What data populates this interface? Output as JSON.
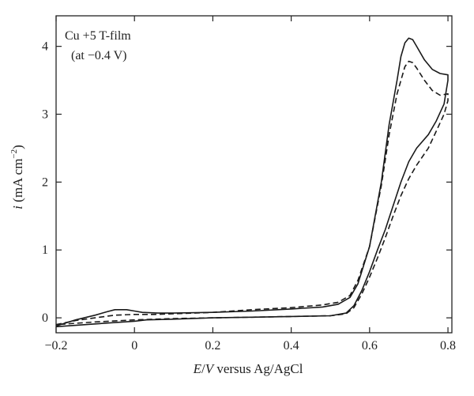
{
  "chart_data": {
    "type": "line",
    "annotation_lines": [
      "Cu +5 T-film",
      "(at −0.4 V)"
    ],
    "xlabel_parts": {
      "E": "E",
      "slash": "/",
      "V": "V",
      "rest": " versus Ag/AgCl"
    },
    "ylabel_parts": {
      "i": "i",
      "rest": " (mA cm",
      "exp": "−2",
      "close": ")"
    },
    "xlim": [
      -0.2,
      0.81
    ],
    "ylim": [
      -0.22,
      4.45
    ],
    "xticks": [
      -0.2,
      0,
      0.2,
      0.4,
      0.6,
      0.8
    ],
    "xtick_labels": [
      "−0.2",
      "0",
      "0.2",
      "0.4",
      "0.6",
      "0.8"
    ],
    "yticks": [
      0,
      1,
      2,
      3,
      4
    ],
    "ytick_labels": [
      "0",
      "1",
      "2",
      "3",
      "4"
    ],
    "series": [
      {
        "style": "solid",
        "points": [
          [
            -0.2,
            -0.12
          ],
          [
            -0.15,
            -0.03
          ],
          [
            -0.1,
            0.04
          ],
          [
            -0.07,
            0.09
          ],
          [
            -0.05,
            0.12
          ],
          [
            -0.02,
            0.12
          ],
          [
            0.0,
            0.1
          ],
          [
            0.02,
            0.08
          ],
          [
            0.06,
            0.07
          ],
          [
            0.1,
            0.07
          ],
          [
            0.2,
            0.08
          ],
          [
            0.3,
            0.1
          ],
          [
            0.4,
            0.13
          ],
          [
            0.48,
            0.16
          ],
          [
            0.52,
            0.2
          ],
          [
            0.55,
            0.3
          ],
          [
            0.57,
            0.5
          ],
          [
            0.6,
            1.05
          ],
          [
            0.63,
            2.0
          ],
          [
            0.65,
            2.85
          ],
          [
            0.67,
            3.5
          ],
          [
            0.68,
            3.85
          ],
          [
            0.69,
            4.05
          ],
          [
            0.7,
            4.12
          ],
          [
            0.71,
            4.1
          ],
          [
            0.72,
            4.0
          ],
          [
            0.74,
            3.8
          ],
          [
            0.76,
            3.66
          ],
          [
            0.78,
            3.6
          ],
          [
            0.8,
            3.58
          ],
          [
            0.8,
            3.5
          ],
          [
            0.79,
            3.15
          ],
          [
            0.77,
            2.9
          ],
          [
            0.75,
            2.7
          ],
          [
            0.72,
            2.5
          ],
          [
            0.7,
            2.3
          ],
          [
            0.68,
            2.0
          ],
          [
            0.66,
            1.65
          ],
          [
            0.64,
            1.3
          ],
          [
            0.62,
            1.0
          ],
          [
            0.6,
            0.68
          ],
          [
            0.58,
            0.4
          ],
          [
            0.56,
            0.18
          ],
          [
            0.54,
            0.07
          ],
          [
            0.5,
            0.03
          ],
          [
            0.4,
            0.02
          ],
          [
            0.3,
            0.01
          ],
          [
            0.2,
            0.0
          ],
          [
            0.1,
            -0.02
          ],
          [
            0.03,
            -0.03
          ],
          [
            0.0,
            -0.05
          ],
          [
            -0.05,
            -0.07
          ],
          [
            -0.1,
            -0.09
          ],
          [
            -0.15,
            -0.11
          ],
          [
            -0.2,
            -0.13
          ]
        ]
      },
      {
        "style": "dashed",
        "points": [
          [
            -0.2,
            -0.1
          ],
          [
            -0.15,
            -0.04
          ],
          [
            -0.1,
            0.0
          ],
          [
            -0.05,
            0.04
          ],
          [
            0.0,
            0.05
          ],
          [
            0.05,
            0.05
          ],
          [
            0.1,
            0.06
          ],
          [
            0.2,
            0.08
          ],
          [
            0.3,
            0.12
          ],
          [
            0.4,
            0.15
          ],
          [
            0.48,
            0.19
          ],
          [
            0.52,
            0.23
          ],
          [
            0.55,
            0.33
          ],
          [
            0.57,
            0.55
          ],
          [
            0.6,
            1.05
          ],
          [
            0.63,
            1.95
          ],
          [
            0.65,
            2.7
          ],
          [
            0.67,
            3.3
          ],
          [
            0.69,
            3.7
          ],
          [
            0.7,
            3.78
          ],
          [
            0.71,
            3.76
          ],
          [
            0.72,
            3.68
          ],
          [
            0.74,
            3.5
          ],
          [
            0.76,
            3.35
          ],
          [
            0.78,
            3.28
          ],
          [
            0.8,
            3.3
          ],
          [
            0.8,
            3.2
          ],
          [
            0.79,
            3.0
          ],
          [
            0.77,
            2.75
          ],
          [
            0.75,
            2.5
          ],
          [
            0.72,
            2.25
          ],
          [
            0.7,
            2.05
          ],
          [
            0.68,
            1.8
          ],
          [
            0.66,
            1.5
          ],
          [
            0.64,
            1.18
          ],
          [
            0.62,
            0.88
          ],
          [
            0.6,
            0.6
          ],
          [
            0.58,
            0.35
          ],
          [
            0.56,
            0.15
          ],
          [
            0.54,
            0.06
          ],
          [
            0.5,
            0.03
          ],
          [
            0.4,
            0.02
          ],
          [
            0.3,
            0.01
          ],
          [
            0.2,
            0.0
          ],
          [
            0.1,
            -0.01
          ],
          [
            0.0,
            -0.03
          ],
          [
            -0.1,
            -0.06
          ],
          [
            -0.2,
            -0.1
          ]
        ]
      }
    ]
  }
}
